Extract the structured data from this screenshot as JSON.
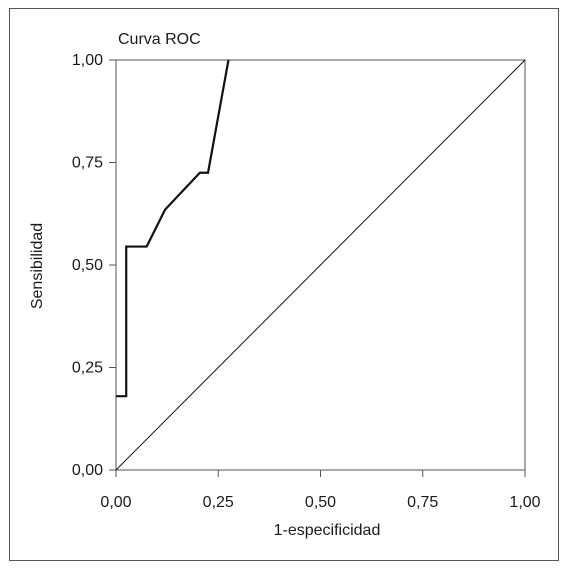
{
  "chart_data": {
    "type": "line",
    "title": "Curva ROC",
    "xlabel": "1-especificidad",
    "ylabel": "Sensibilidad",
    "xlim": [
      0,
      1
    ],
    "ylim": [
      0,
      1
    ],
    "x_ticks": [
      "0,00",
      "0,25",
      "0,50",
      "0,75",
      "1,00"
    ],
    "y_ticks": [
      "0,00",
      "0,25",
      "0,50",
      "0,75",
      "1,00"
    ],
    "x_tick_values": [
      0,
      0.25,
      0.5,
      0.75,
      1
    ],
    "y_tick_values": [
      0,
      0.25,
      0.5,
      0.75,
      1
    ],
    "grid": false,
    "series": [
      {
        "role": "roc-curve",
        "x": [
          0,
          0.025,
          0.025,
          0.075,
          0.12,
          0.205,
          0.225,
          0.275
        ],
        "y": [
          0.18,
          0.18,
          0.545,
          0.545,
          0.635,
          0.725,
          0.725,
          1.0
        ]
      },
      {
        "role": "reference-diagonal",
        "x": [
          0,
          1
        ],
        "y": [
          0,
          1
        ]
      }
    ]
  }
}
